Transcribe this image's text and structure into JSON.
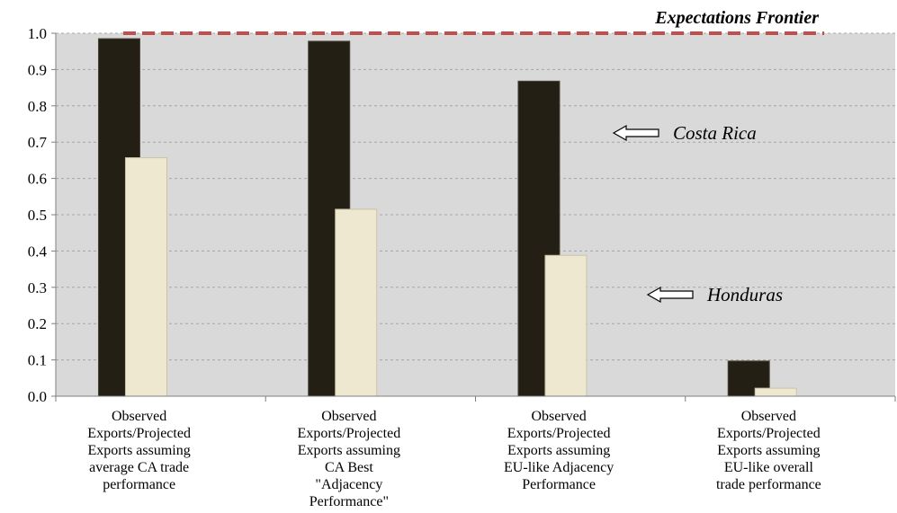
{
  "chart_data": {
    "type": "bar",
    "categories": [
      [
        "Observed",
        "Exports/Projected",
        "Exports assuming",
        "average CA trade",
        "performance"
      ],
      [
        "Observed",
        "Exports/Projected",
        "Exports assuming",
        "CA Best",
        "\"Adjacency",
        "Performance\""
      ],
      [
        "Observed",
        "Exports/Projected",
        "Exports assuming",
        "EU-like Adjacency",
        "Performance"
      ],
      [
        "Observed",
        "Exports/Projected",
        "Exports assuming",
        "EU-like overall",
        "trade performance"
      ]
    ],
    "series": [
      {
        "name": "Costa Rica",
        "color": "#231f15",
        "values": [
          0.985,
          0.978,
          0.868,
          0.097
        ]
      },
      {
        "name": "Honduras",
        "color": "#ede8cf",
        "values": [
          0.657,
          0.515,
          0.388,
          0.022
        ]
      }
    ],
    "ylim": [
      0,
      1.0
    ],
    "yticks": [
      "0.0",
      "0.1",
      "0.2",
      "0.3",
      "0.4",
      "0.5",
      "0.6",
      "0.7",
      "0.8",
      "0.9",
      "1.0"
    ],
    "grid": true,
    "frontier": {
      "label": "Expectations Frontier",
      "value": 1.0,
      "color": "#c0504d"
    },
    "annotations": [
      {
        "text": "Costa Rica",
        "series": 0,
        "category": 2
      },
      {
        "text": "Honduras",
        "series": 1,
        "category": 2
      }
    ],
    "colors": {
      "plot_background": "#d9d9d9",
      "grid": "#a6a6a6"
    }
  }
}
